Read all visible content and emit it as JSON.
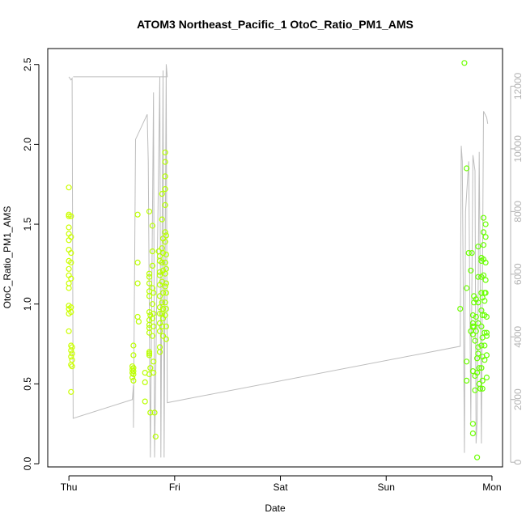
{
  "chart_data": {
    "type": "scatter",
    "title": "ATOM3 Northeast_Pacific_1 OtoC_Ratio_PM1_AMS",
    "xlabel": "Date",
    "ylabel": "OtoC_Ratio_PM1_AMS",
    "x_ticks": [
      "Thu",
      "Fri",
      "Sat",
      "Sun",
      "Mon"
    ],
    "y_ticks": [
      "0.0",
      "0.5",
      "1.0",
      "1.5",
      "2.0",
      "2.5"
    ],
    "y_tick_values": [
      0,
      0.5,
      1.0,
      1.5,
      2.0,
      2.5
    ],
    "y2_ticks": [
      "0",
      "2000",
      "4000",
      "6000",
      "8000",
      "10000",
      "12000"
    ],
    "y2_tick_values": [
      0,
      2000,
      4000,
      6000,
      8000,
      10000,
      12000
    ],
    "xlim": [
      -0.2,
      4.1
    ],
    "ylim": [
      -0.02,
      2.6
    ],
    "y2lim": [
      -150,
      13200
    ],
    "colors": {
      "axis": "#000000",
      "line": "#bdbdbd",
      "right_axis": "#b3b3b3",
      "point_start": "#ccff00",
      "point_end": "#66ff00"
    },
    "scatter_points": [
      [
        0.0,
        1.73
      ],
      [
        0.0,
        1.56
      ],
      [
        0.0,
        1.55
      ],
      [
        0.02,
        1.55
      ],
      [
        0.0,
        1.48
      ],
      [
        0.0,
        1.44
      ],
      [
        0.02,
        1.42
      ],
      [
        0.0,
        1.4
      ],
      [
        0.0,
        1.34
      ],
      [
        0.02,
        1.32
      ],
      [
        0.0,
        1.27
      ],
      [
        0.02,
        1.26
      ],
      [
        0.0,
        1.22
      ],
      [
        0.0,
        1.18
      ],
      [
        0.02,
        1.16
      ],
      [
        0.0,
        1.13
      ],
      [
        0.0,
        1.1
      ],
      [
        0.0,
        0.99
      ],
      [
        0.02,
        0.98
      ],
      [
        0.0,
        0.97
      ],
      [
        0.02,
        0.95
      ],
      [
        0.0,
        0.94
      ],
      [
        0.0,
        0.83
      ],
      [
        0.02,
        0.74
      ],
      [
        0.03,
        0.73
      ],
      [
        0.02,
        0.71
      ],
      [
        0.03,
        0.69
      ],
      [
        0.02,
        0.67
      ],
      [
        0.03,
        0.65
      ],
      [
        0.02,
        0.62
      ],
      [
        0.03,
        0.61
      ],
      [
        0.02,
        0.45
      ],
      [
        0.61,
        0.74
      ],
      [
        0.61,
        0.68
      ],
      [
        0.6,
        0.61
      ],
      [
        0.61,
        0.6
      ],
      [
        0.6,
        0.59
      ],
      [
        0.61,
        0.58
      ],
      [
        0.6,
        0.57
      ],
      [
        0.61,
        0.56
      ],
      [
        0.6,
        0.54
      ],
      [
        0.61,
        0.52
      ],
      [
        0.65,
        1.56
      ],
      [
        0.65,
        1.26
      ],
      [
        0.65,
        1.13
      ],
      [
        0.65,
        0.92
      ],
      [
        0.66,
        0.89
      ],
      [
        0.72,
        0.57
      ],
      [
        0.72,
        0.51
      ],
      [
        0.72,
        0.39
      ],
      [
        0.76,
        1.58
      ],
      [
        0.76,
        1.19
      ],
      [
        0.76,
        1.17
      ],
      [
        0.76,
        1.13
      ],
      [
        0.76,
        1.08
      ],
      [
        0.76,
        1.05
      ],
      [
        0.76,
        0.95
      ],
      [
        0.77,
        0.93
      ],
      [
        0.76,
        0.9
      ],
      [
        0.76,
        0.87
      ],
      [
        0.76,
        0.85
      ],
      [
        0.76,
        0.82
      ],
      [
        0.76,
        0.7
      ],
      [
        0.76,
        0.69
      ],
      [
        0.76,
        0.68
      ],
      [
        0.77,
        0.6
      ],
      [
        0.76,
        0.56
      ],
      [
        0.77,
        0.32
      ],
      [
        0.79,
        1.49
      ],
      [
        0.79,
        1.33
      ],
      [
        0.79,
        1.24
      ],
      [
        0.79,
        1.1
      ],
      [
        0.8,
        1.07
      ],
      [
        0.79,
        1.0
      ],
      [
        0.8,
        0.94
      ],
      [
        0.79,
        0.91
      ],
      [
        0.8,
        0.86
      ],
      [
        0.79,
        0.8
      ],
      [
        0.8,
        0.64
      ],
      [
        0.8,
        0.57
      ],
      [
        0.81,
        0.32
      ],
      [
        0.82,
        0.17
      ],
      [
        0.85,
        1.33
      ],
      [
        0.86,
        1.3
      ],
      [
        0.86,
        1.27
      ],
      [
        0.86,
        1.2
      ],
      [
        0.86,
        1.18
      ],
      [
        0.86,
        1.12
      ],
      [
        0.86,
        1.05
      ],
      [
        0.86,
        0.98
      ],
      [
        0.86,
        0.94
      ],
      [
        0.86,
        0.88
      ],
      [
        0.86,
        0.83
      ],
      [
        0.86,
        0.73
      ],
      [
        0.86,
        0.7
      ],
      [
        0.88,
        1.69
      ],
      [
        0.88,
        1.53
      ],
      [
        0.89,
        1.41
      ],
      [
        0.88,
        1.35
      ],
      [
        0.89,
        1.32
      ],
      [
        0.88,
        1.26
      ],
      [
        0.89,
        1.21
      ],
      [
        0.88,
        1.14
      ],
      [
        0.89,
        1.07
      ],
      [
        0.88,
        1.01
      ],
      [
        0.89,
        0.97
      ],
      [
        0.88,
        0.94
      ],
      [
        0.89,
        0.91
      ],
      [
        0.88,
        0.86
      ],
      [
        0.89,
        0.8
      ],
      [
        0.91,
        1.95
      ],
      [
        0.91,
        1.89
      ],
      [
        0.91,
        1.8
      ],
      [
        0.91,
        1.72
      ],
      [
        0.91,
        1.62
      ],
      [
        0.91,
        1.45
      ],
      [
        0.92,
        1.43
      ],
      [
        0.91,
        1.39
      ],
      [
        0.92,
        1.31
      ],
      [
        0.91,
        1.26
      ],
      [
        0.92,
        1.22
      ],
      [
        0.91,
        1.19
      ],
      [
        0.92,
        1.13
      ],
      [
        0.91,
        1.11
      ],
      [
        0.92,
        1.07
      ],
      [
        0.91,
        1.01
      ],
      [
        0.92,
        0.97
      ],
      [
        0.91,
        0.93
      ],
      [
        0.92,
        0.86
      ],
      [
        0.92,
        0.78
      ],
      [
        3.7,
        0.97
      ],
      [
        3.74,
        2.51
      ],
      [
        3.76,
        1.85
      ],
      [
        3.76,
        1.1
      ],
      [
        3.76,
        0.64
      ],
      [
        3.76,
        0.52
      ],
      [
        3.78,
        1.32
      ],
      [
        3.8,
        0.83
      ],
      [
        3.81,
        1.32
      ],
      [
        3.8,
        1.21
      ],
      [
        3.82,
        0.93
      ],
      [
        3.82,
        0.88
      ],
      [
        3.82,
        0.86
      ],
      [
        3.82,
        0.81
      ],
      [
        3.82,
        0.58
      ],
      [
        3.82,
        0.25
      ],
      [
        3.82,
        0.19
      ],
      [
        3.83,
        1.05
      ],
      [
        3.83,
        1.01
      ],
      [
        3.83,
        0.86
      ],
      [
        3.84,
        0.77
      ],
      [
        3.84,
        0.55
      ],
      [
        3.84,
        0.46
      ],
      [
        3.85,
        1.03
      ],
      [
        3.85,
        0.92
      ],
      [
        3.85,
        0.83
      ],
      [
        3.86,
        0.66
      ],
      [
        3.86,
        0.57
      ],
      [
        3.86,
        0.04
      ],
      [
        3.87,
        1.36
      ],
      [
        3.87,
        1.17
      ],
      [
        3.87,
        1.01
      ],
      [
        3.87,
        0.88
      ],
      [
        3.87,
        0.73
      ],
      [
        3.87,
        0.69
      ],
      [
        3.88,
        0.6
      ],
      [
        3.88,
        0.5
      ],
      [
        3.89,
        0.47
      ],
      [
        3.9,
        1.29
      ],
      [
        3.9,
        1.27
      ],
      [
        3.9,
        1.17
      ],
      [
        3.9,
        1.07
      ],
      [
        3.91,
        1.04
      ],
      [
        3.9,
        0.96
      ],
      [
        3.91,
        0.93
      ],
      [
        3.9,
        0.86
      ],
      [
        3.91,
        0.79
      ],
      [
        3.9,
        0.74
      ],
      [
        3.91,
        0.67
      ],
      [
        3.9,
        0.6
      ],
      [
        3.91,
        0.52
      ],
      [
        3.91,
        0.47
      ],
      [
        3.92,
        1.54
      ],
      [
        3.92,
        1.45
      ],
      [
        3.92,
        1.37
      ],
      [
        3.92,
        1.28
      ],
      [
        3.92,
        1.18
      ],
      [
        3.93,
        1.07
      ],
      [
        3.93,
        1.02
      ],
      [
        3.93,
        0.93
      ],
      [
        3.93,
        0.82
      ],
      [
        3.93,
        0.74
      ],
      [
        3.93,
        0.65
      ],
      [
        3.94,
        1.5
      ],
      [
        3.94,
        1.42
      ],
      [
        3.94,
        1.26
      ],
      [
        3.94,
        1.15
      ],
      [
        3.94,
        1.07
      ],
      [
        3.95,
        0.92
      ],
      [
        3.95,
        0.82
      ],
      [
        3.95,
        0.8
      ],
      [
        3.95,
        0.68
      ],
      [
        3.95,
        0.54
      ]
    ],
    "line_series": [
      [
        0.0,
        12300
      ],
      [
        0.02,
        12200
      ],
      [
        0.03,
        12250
      ],
      [
        0.04,
        1400
      ],
      [
        0.6,
        2000
      ],
      [
        0.61,
        2450
      ],
      [
        0.61,
        1100
      ],
      [
        0.63,
        10300
      ],
      [
        0.74,
        11100
      ],
      [
        0.75,
        9600
      ],
      [
        0.77,
        150
      ],
      [
        0.8,
        11800
      ],
      [
        0.81,
        150
      ],
      [
        0.86,
        12300
      ],
      [
        0.87,
        150
      ],
      [
        0.89,
        12500
      ],
      [
        0.9,
        150
      ],
      [
        0.92,
        12700
      ],
      [
        0.93,
        12300
      ],
      [
        0.04,
        12300
      ],
      [
        0.92,
        12300
      ],
      [
        0.93,
        1900
      ],
      [
        3.7,
        3700
      ],
      [
        3.71,
        10100
      ],
      [
        3.72,
        9600
      ],
      [
        3.74,
        300
      ],
      [
        3.75,
        8000
      ],
      [
        3.78,
        9600
      ],
      [
        3.8,
        1300
      ],
      [
        3.82,
        9800
      ],
      [
        3.84,
        9300
      ],
      [
        3.85,
        600
      ],
      [
        3.86,
        1300
      ],
      [
        3.88,
        9900
      ],
      [
        3.9,
        600
      ],
      [
        3.92,
        11200
      ],
      [
        3.95,
        11000
      ],
      [
        3.96,
        10800
      ]
    ]
  }
}
